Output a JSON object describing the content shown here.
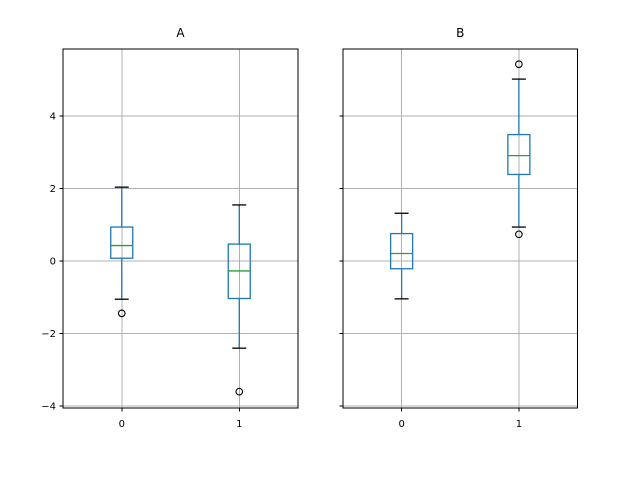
{
  "chart_data": [
    {
      "type": "boxplot",
      "title": "A",
      "xlabel": "",
      "ylabel": "",
      "x_positions": [
        0,
        1
      ],
      "x_tick_labels": [
        "0",
        "1"
      ],
      "y_tick_values": [
        -4,
        -2,
        0,
        2,
        4
      ],
      "y_tick_labels": [
        "−4",
        "−2",
        "0",
        "2",
        "4"
      ],
      "show_y_tick_labels": true,
      "xlim": [
        -0.5,
        1.5
      ],
      "ylim": [
        -4.05,
        5.85
      ],
      "grid": true,
      "legend": null,
      "boxes": [
        {
          "x": 0,
          "label": "0",
          "whislo": -1.05,
          "q1": 0.08,
          "med": 0.43,
          "q3": 0.94,
          "whishi": 2.04,
          "fliers": [
            -1.44
          ]
        },
        {
          "x": 1,
          "label": "1",
          "whislo": -2.4,
          "q1": -1.03,
          "med": -0.27,
          "q3": 0.47,
          "whishi": 1.55,
          "fliers": [
            -3.6
          ]
        }
      ]
    },
    {
      "type": "boxplot",
      "title": "B",
      "xlabel": "",
      "ylabel": "",
      "x_positions": [
        0,
        1
      ],
      "x_tick_labels": [
        "0",
        "1"
      ],
      "y_tick_values": [
        -4,
        -2,
        0,
        2,
        4
      ],
      "y_tick_labels": [
        "−4",
        "−2",
        "0",
        "2",
        "4"
      ],
      "show_y_tick_labels": false,
      "xlim": [
        -0.5,
        1.5
      ],
      "ylim": [
        -4.05,
        5.85
      ],
      "grid": true,
      "legend": null,
      "boxes": [
        {
          "x": 0,
          "label": "0",
          "whislo": -1.04,
          "q1": -0.21,
          "med": 0.21,
          "q3": 0.76,
          "whishi": 1.32,
          "fliers": []
        },
        {
          "x": 1,
          "label": "1",
          "whislo": 0.94,
          "q1": 2.39,
          "med": 2.91,
          "q3": 3.49,
          "whishi": 5.02,
          "fliers": [
            5.43,
            0.74
          ]
        }
      ]
    }
  ],
  "style": {
    "box_color": "#1f77b4",
    "whisker_color": "#1f77b4",
    "median_color": "#2ca02c",
    "cap_color": "#000000",
    "flier_edge_color": "#000000",
    "grid_color": "#b0b0b0",
    "spine_color": "#000000",
    "tick_color": "#000000",
    "text_color": "#000000",
    "background": "#ffffff"
  }
}
